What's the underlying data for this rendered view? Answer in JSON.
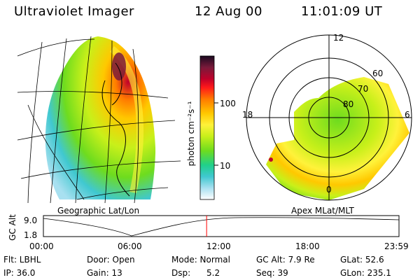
{
  "header": {
    "title": "Ultraviolet Imager",
    "date": "12 Aug 00",
    "time": "11:01:09 UT"
  },
  "geo_panel": {
    "label": "Geographic Lat/Lon"
  },
  "polar_panel": {
    "label": "Apex MLat/MLT",
    "mlt_labels": [
      "12",
      "18",
      "6",
      "0"
    ],
    "lat_labels": [
      "60",
      "70",
      "80"
    ]
  },
  "colorbar": {
    "unit_label": "photon cm⁻²s⁻¹",
    "ticks": [
      "100",
      "10"
    ],
    "colors": [
      "#1a0a20",
      "#7a1a3a",
      "#c0002a",
      "#ff1a1a",
      "#ff7a00",
      "#ffc800",
      "#fff23a",
      "#c8f01a",
      "#6edc1e",
      "#20d08a",
      "#40c8d0",
      "#a8e0f0",
      "#ffffff"
    ]
  },
  "timeline": {
    "axis_label": "GC Alt",
    "y_ticks": [
      "9.0",
      "1.8"
    ],
    "x_ticks": [
      "00:00",
      "06:00",
      "12:00",
      "18:00",
      "23:59"
    ],
    "current_time_fraction": 0.459,
    "marker_color": "#ff0000"
  },
  "status": {
    "row1": [
      "Flt: LBHL",
      "Door: Open",
      "Mode: Normal",
      "GC Alt: 7.9 Re",
      "GLat: 52.6"
    ],
    "row2": [
      "IP: 36.0",
      "Gain: 13",
      "Dsp:      5.2",
      "Seq: 39",
      "GLon: 235.1"
    ]
  }
}
